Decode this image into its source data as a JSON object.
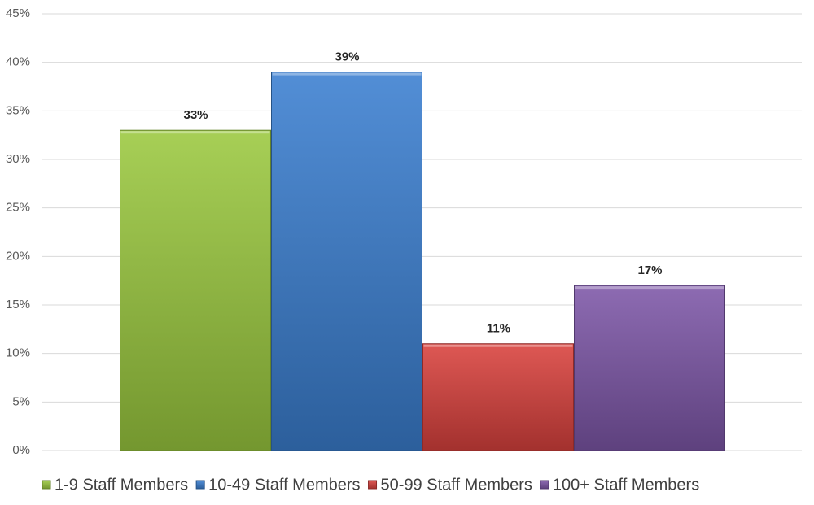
{
  "chart_data": {
    "type": "bar",
    "series": [
      {
        "name": "1-9 Staff Members",
        "color": "#9bc93f",
        "values": [
          33
        ],
        "value_labels": [
          "33%"
        ]
      },
      {
        "name": "10-49 Staff Members",
        "color": "#3a7fd0",
        "values": [
          39
        ],
        "value_labels": [
          "39%"
        ]
      },
      {
        "name": "50-99 Staff Members",
        "color": "#d9413d",
        "values": [
          11
        ],
        "value_labels": [
          "11%"
        ]
      },
      {
        "name": "100+ Staff Members",
        "color": "#7d57a8",
        "values": [
          17
        ],
        "value_labels": [
          "17%"
        ]
      }
    ],
    "ylim": [
      0,
      45
    ],
    "yticks": [
      {
        "value": 0,
        "label": "0%"
      },
      {
        "value": 5,
        "label": "5%"
      },
      {
        "value": 10,
        "label": "10%"
      },
      {
        "value": 15,
        "label": "15%"
      },
      {
        "value": 20,
        "label": "20%"
      },
      {
        "value": 25,
        "label": "25%"
      },
      {
        "value": 30,
        "label": "30%"
      },
      {
        "value": 35,
        "label": "35%"
      },
      {
        "value": 40,
        "label": "40%"
      },
      {
        "value": 45,
        "label": "45%"
      }
    ],
    "grid": true,
    "legend": "bottom"
  }
}
